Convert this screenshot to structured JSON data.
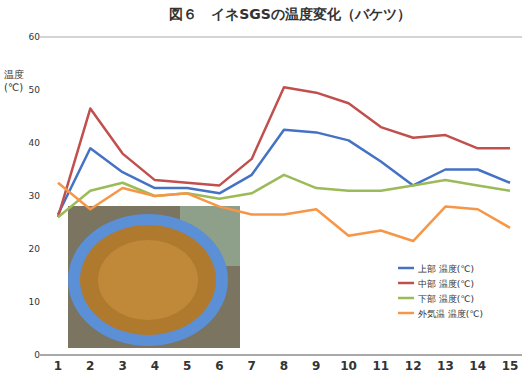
{
  "chart_data": {
    "type": "line",
    "title": "図６　イネSGSの温度変化（バケツ）",
    "ylabel": "温度\n(℃)",
    "categories": [
      1,
      2,
      3,
      4,
      5,
      6,
      7,
      8,
      9,
      10,
      11,
      12,
      13,
      14,
      15
    ],
    "series": [
      {
        "name": "上部 温度(℃)",
        "color": "#4472c4",
        "values": [
          26.5,
          39,
          34.5,
          31.5,
          31.5,
          30.5,
          34,
          42.5,
          42,
          40.5,
          36.5,
          32,
          35,
          35,
          32.5
        ]
      },
      {
        "name": "中部 温度(℃)",
        "color": "#c0504d",
        "values": [
          26,
          46.5,
          38,
          33,
          32.5,
          32,
          37,
          50.5,
          49.5,
          47.5,
          43,
          41,
          41.5,
          39,
          39
        ]
      },
      {
        "name": "下部 温度(℃)",
        "color": "#9bbb59",
        "values": [
          26,
          31,
          32.5,
          30,
          30.5,
          29.5,
          30.5,
          34,
          31.5,
          31,
          31,
          32,
          33,
          32,
          31
        ]
      },
      {
        "name": "外気温 温度(℃)",
        "color": "#f79646",
        "values": [
          32.5,
          27.5,
          31.5,
          30,
          30.5,
          28,
          26.5,
          26.5,
          27.5,
          22.5,
          23.5,
          21.5,
          28,
          27.5,
          24
        ]
      }
    ],
    "ylim": [
      0,
      60
    ],
    "yticks": [
      0,
      10,
      20,
      30,
      40,
      50,
      60
    ],
    "grid": false,
    "legend": "lower right"
  }
}
